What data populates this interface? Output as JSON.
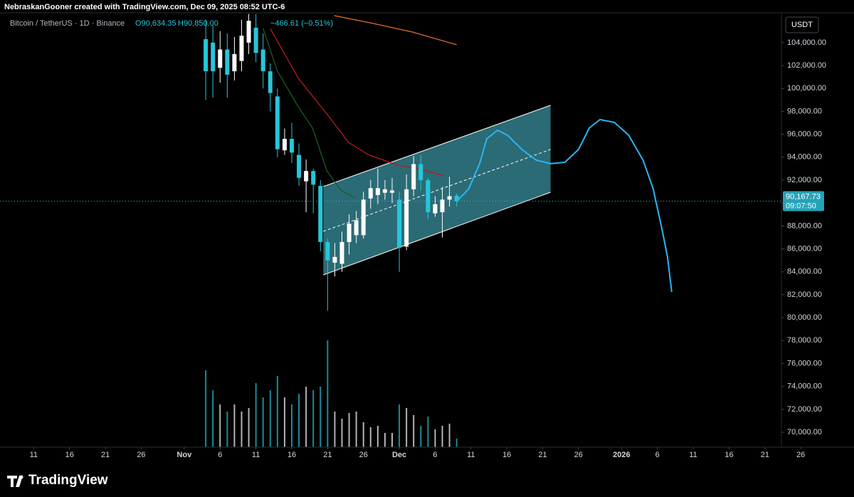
{
  "header": {
    "attribution": "NebraskanGooner created with TradingView.com, Dec 09, 2025 08:52 UTC-6",
    "symbol": "Bitcoin / TetherUS · 1D · Binance",
    "open": "O90,634.35",
    "high": "H90,850.00",
    "change": "−466.61 (−0.51%)"
  },
  "price_axis": {
    "currency": "USDT",
    "countdown": "09:07:50"
  },
  "footer": {
    "brand": "TradingView"
  },
  "chart_data": {
    "type": "candlestick",
    "x": [
      24,
      25,
      26,
      27,
      28,
      29,
      30,
      31,
      32,
      33,
      34,
      35,
      36,
      37,
      38,
      39,
      40,
      41,
      42,
      43,
      44,
      45,
      46,
      47,
      48,
      49,
      50,
      51,
      52,
      53,
      54,
      55,
      56,
      57,
      58,
      59
    ],
    "open": [
      104300,
      104000,
      101800,
      103400,
      101500,
      102400,
      104000,
      105300,
      103400,
      101500,
      99300,
      94600,
      95600,
      94200,
      91900,
      92800,
      91500,
      86600,
      84800,
      84700,
      86600,
      87200,
      87200,
      90400,
      90700,
      90900,
      90900,
      90300,
      86200,
      91200,
      93400,
      92000,
      89100,
      89200,
      90300,
      90634.35
    ],
    "high": [
      106000,
      105500,
      105000,
      104800,
      104500,
      106000,
      106500,
      106500,
      104800,
      102200,
      100000,
      96500,
      97000,
      95200,
      93800,
      93000,
      92000,
      86900,
      86500,
      87500,
      89000,
      89300,
      91000,
      92000,
      93000,
      92000,
      92200,
      91000,
      92500,
      94100,
      94200,
      92200,
      90600,
      91400,
      92300,
      90850
    ],
    "low": [
      99000,
      99200,
      100500,
      99200,
      100700,
      101500,
      103000,
      102300,
      100000,
      98000,
      94000,
      94200,
      93500,
      91500,
      89200,
      89100,
      85800,
      80600,
      83600,
      84000,
      85500,
      86500,
      86900,
      89500,
      89900,
      90300,
      90000,
      84000,
      85900,
      90600,
      91100,
      88600,
      88800,
      87000,
      89700,
      89700
    ],
    "close": [
      101500,
      101500,
      103400,
      101200,
      103000,
      104600,
      105900,
      103100,
      101500,
      99600,
      94700,
      95600,
      94400,
      92200,
      92800,
      91600,
      86600,
      85000,
      85300,
      86600,
      88200,
      88500,
      90300,
      91300,
      91300,
      91200,
      91100,
      86100,
      91200,
      93400,
      92000,
      89200,
      89900,
      90300,
      90600,
      90167.73
    ],
    "volume": [
      108,
      80,
      60,
      50,
      60,
      50,
      55,
      90,
      70,
      80,
      100,
      70,
      60,
      75,
      85,
      80,
      85,
      150,
      50,
      40,
      48,
      50,
      35,
      28,
      30,
      20,
      20,
      60,
      55,
      45,
      30,
      43,
      25,
      30,
      33,
      12
    ],
    "up_color": "#ffffff",
    "down_color": "#26c6da",
    "last_price": {
      "value": 90167.73,
      "label": "90,167.73"
    },
    "xlim": [
      -4.7,
      104.3
    ],
    "ylim": [
      68700,
      106600
    ],
    "xticks": [
      {
        "value": 0,
        "label": "11"
      },
      {
        "value": 5,
        "label": "16"
      },
      {
        "value": 10,
        "label": "21"
      },
      {
        "value": 15,
        "label": "26"
      },
      {
        "value": 21,
        "label": "Nov"
      },
      {
        "value": 26,
        "label": "6"
      },
      {
        "value": 31,
        "label": "11"
      },
      {
        "value": 36,
        "label": "16"
      },
      {
        "value": 41,
        "label": "21"
      },
      {
        "value": 46,
        "label": "26"
      },
      {
        "value": 51,
        "label": "Dec"
      },
      {
        "value": 56,
        "label": "6"
      },
      {
        "value": 61,
        "label": "11"
      },
      {
        "value": 66,
        "label": "16"
      },
      {
        "value": 71,
        "label": "21"
      },
      {
        "value": 76,
        "label": "26"
      },
      {
        "value": 82,
        "label": "2026"
      },
      {
        "value": 87,
        "label": "6"
      },
      {
        "value": 92,
        "label": "11"
      },
      {
        "value": 97,
        "label": "16"
      },
      {
        "value": 102,
        "label": "21"
      },
      {
        "value": 107,
        "label": "26"
      }
    ],
    "yticks": [
      {
        "value": 70000,
        "label": "70,000.00"
      },
      {
        "value": 72000,
        "label": "72,000.00"
      },
      {
        "value": 74000,
        "label": "74,000.00"
      },
      {
        "value": 76000,
        "label": "76,000.00"
      },
      {
        "value": 78000,
        "label": "78,000.00"
      },
      {
        "value": 80000,
        "label": "80,000.00"
      },
      {
        "value": 82000,
        "label": "82,000.00"
      },
      {
        "value": 84000,
        "label": "84,000.00"
      },
      {
        "value": 86000,
        "label": "86,000.00"
      },
      {
        "value": 88000,
        "label": "88,000.00"
      },
      {
        "value": 90000,
        "label": "90,000.00"
      },
      {
        "value": 92000,
        "label": "92,000.00"
      },
      {
        "value": 94000,
        "label": "94,000.00"
      },
      {
        "value": 96000,
        "label": "96,000.00"
      },
      {
        "value": 98000,
        "label": "98,000.00"
      },
      {
        "value": 100000,
        "label": "100,000.00"
      },
      {
        "value": 102000,
        "label": "102,000.00"
      },
      {
        "value": 104000,
        "label": "104,000.00"
      }
    ],
    "lines": [
      {
        "color": "#e0702a",
        "x": [
          41.9,
          46.8,
          52.8,
          59
        ],
        "values": [
          106360,
          105740,
          104930,
          103810
        ]
      },
      {
        "color": "#b71c1c",
        "x": [
          33,
          36.9,
          40.9,
          43.9,
          46.8,
          50.8,
          54.8,
          57.2
        ],
        "values": [
          105240,
          100890,
          97780,
          95300,
          94180,
          93310,
          92810,
          92380
        ]
      },
      {
        "color": "#1b5e20",
        "x": [
          32,
          34,
          36.9,
          38.9,
          40.9,
          42.9,
          44.9
        ],
        "values": [
          105240,
          101510,
          98410,
          96540,
          92810,
          91070,
          90450
        ]
      }
    ],
    "channel": {
      "fill": "#4fc3d6",
      "x": [
        40.4,
        72.1
      ],
      "upper": [
        91440,
        98530
      ],
      "lower": [
        83730,
        90940
      ],
      "mid": [
        87530,
        94680
      ]
    },
    "projection": {
      "color": "#29b6f6",
      "x": [
        59,
        60.7,
        62.2,
        63.2,
        64.7,
        66.1,
        68.1,
        70.1,
        72.1,
        74.1,
        76,
        77.5,
        79,
        81,
        83,
        85,
        86.4,
        87.6,
        88.4,
        89
      ],
      "values": [
        90138,
        91257,
        93433,
        95609,
        96354,
        95919,
        94676,
        93744,
        93433,
        93557,
        94676,
        96541,
        97287,
        97038,
        95919,
        93744,
        91257,
        87838,
        85352,
        82244
      ]
    }
  }
}
